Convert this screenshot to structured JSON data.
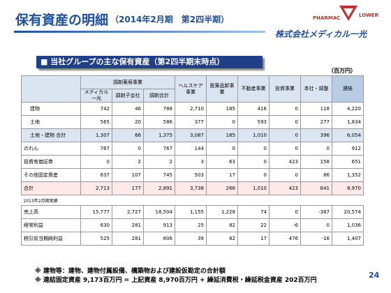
{
  "header": {
    "title": "保有資産の明細",
    "subtitle": "（2014年2月期　第2四半期）",
    "logo_top": "PHARMAC",
    "logo_right": "LOWER",
    "company": "株式会社メディカル一光"
  },
  "section": {
    "title": "■ 当社グループの主な保有資産（第2四半期末時点）",
    "unit": "（百万円）"
  },
  "table": {
    "group_header": "調剤薬局事業",
    "sub_headers": [
      "メディカル一光",
      "調剤子会社",
      "調剤合計"
    ],
    "headers": [
      "ヘルスケア事業",
      "医薬品卸事業",
      "不動産事業",
      "投資事業",
      "本社・調整",
      "連結"
    ],
    "rows": [
      {
        "label": "建物",
        "cells": [
          "742",
          "46",
          "788",
          "2,710",
          "185",
          "416",
          "0",
          "118",
          "4,220"
        ]
      },
      {
        "label": "土地",
        "cells": [
          "565",
          "20",
          "586",
          "377",
          "0",
          "593",
          "0",
          "277",
          "1,834"
        ]
      },
      {
        "label": "土地・建物 合計",
        "cells": [
          "1,307",
          "66",
          "1,375",
          "3,087",
          "185",
          "1,010",
          "0",
          "396",
          "6,054"
        ]
      },
      {
        "label": "のれん",
        "cells": [
          "767",
          "0",
          "767",
          "144",
          "0",
          "0",
          "0",
          "0",
          "912"
        ]
      },
      {
        "label": "投資有価証券",
        "cells": [
          "0",
          "2",
          "2",
          "3",
          "63",
          "0",
          "423",
          "158",
          "651"
        ]
      },
      {
        "label": "その他固定資産",
        "cells": [
          "637",
          "107",
          "745",
          "503",
          "17",
          "0",
          "0",
          "86",
          "1,352"
        ]
      },
      {
        "label": "合計",
        "cells": [
          "2,713",
          "177",
          "2,891",
          "3,738",
          "266",
          "1,010",
          "423",
          "641",
          "8,970"
        ]
      }
    ],
    "prior_period": "2013年2月期実績",
    "prior_rows": [
      {
        "label": "売上高",
        "cells": [
          "15,777",
          "2,727",
          "18,504",
          "1,155",
          "1,228",
          "74",
          "0",
          "-387",
          "20,574"
        ]
      },
      {
        "label": "経常利益",
        "cells": [
          "630",
          "281",
          "913",
          "25",
          "82",
          "22",
          "-6",
          "0",
          "1,036"
        ]
      },
      {
        "label": "税引前当期純利益",
        "cells": [
          "525",
          "281",
          "806",
          "39",
          "82",
          "17",
          "476",
          "-16",
          "1,407"
        ]
      }
    ]
  },
  "footnotes": [
    "※ 建物等：建物、建物付属設備、構築物および建設仮勘定の合計額",
    "※ 連結固定資産 9,173百万円 = 上記資産 8,970百万円 + 繰延消費税・繰延税金資産 202百万円"
  ],
  "page": "24"
}
